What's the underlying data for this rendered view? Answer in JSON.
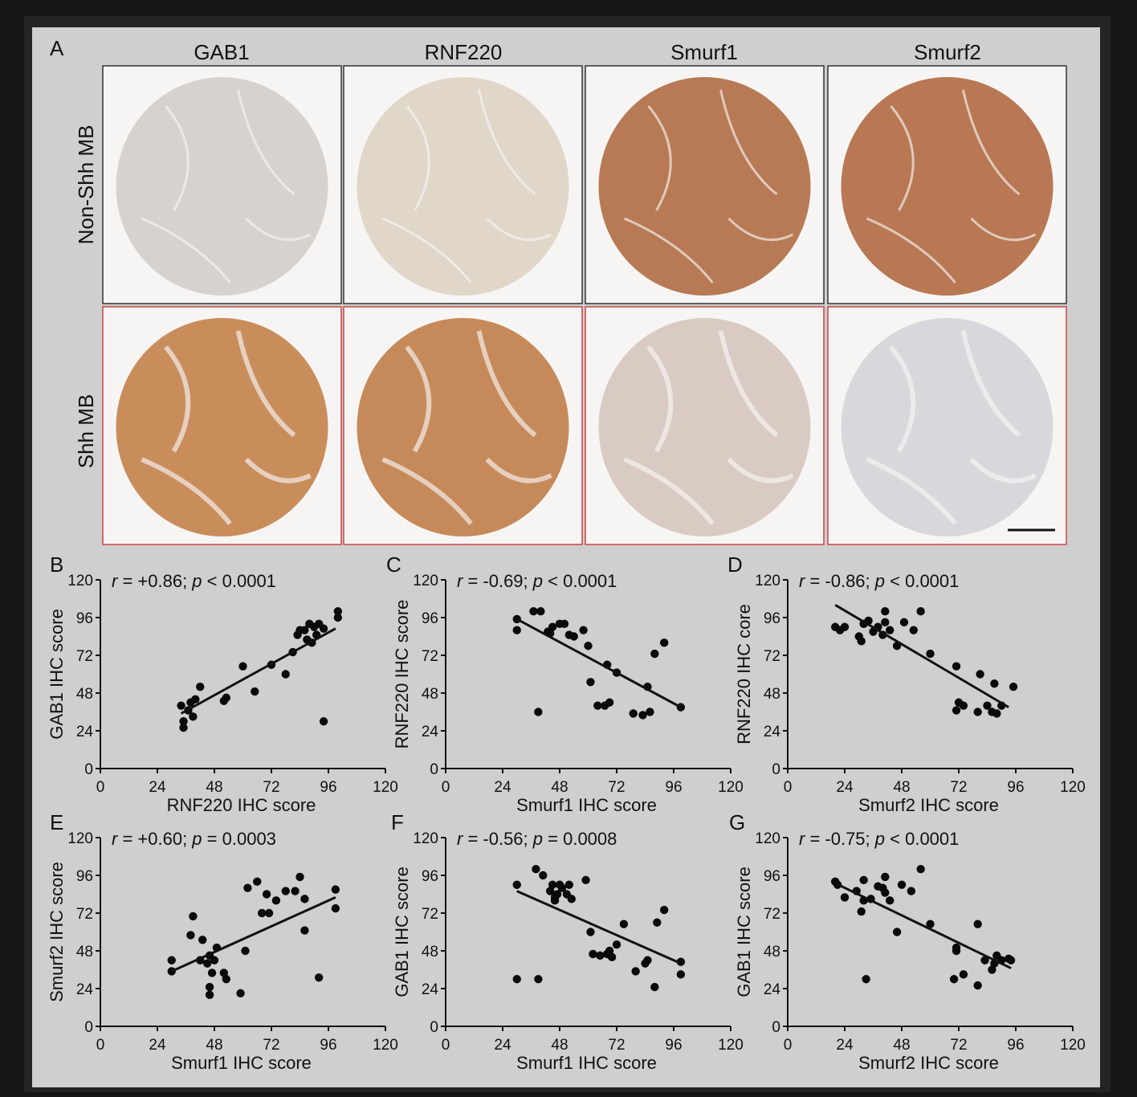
{
  "figure": {
    "panel_A_label": "A",
    "columns": [
      "GAB1",
      "RNF220",
      "Smurf1",
      "Smurf2"
    ],
    "rows": [
      "Non-Shh MB",
      "Shh MB"
    ],
    "tile_colors": {
      "non_shh": [
        "#d8d2cf",
        "#e0d7c8",
        "#b77a55",
        "#b87854"
      ],
      "shh": [
        "#c98d5c",
        "#c68a5a",
        "#d9cbc3",
        "#dad7dc"
      ]
    },
    "border_colors": {
      "non_shh": "#333333",
      "shh": "#cc4444"
    }
  },
  "chart_data": [
    {
      "panel": "B",
      "type": "scatter",
      "annotation": {
        "r": "r",
        "r_val": " = +0.86; ",
        "p": "p",
        "p_val": " < 0.0001"
      },
      "xlabel": "RNF220 IHC score",
      "ylabel": "GAB1 IHC score",
      "xlim": [
        0,
        120
      ],
      "ylim": [
        0,
        120
      ],
      "xticks": [
        0,
        24,
        48,
        72,
        96,
        120
      ],
      "yticks": [
        0,
        24,
        48,
        72,
        96,
        120
      ],
      "points": [
        [
          34,
          40
        ],
        [
          35,
          30
        ],
        [
          35,
          26
        ],
        [
          37,
          37
        ],
        [
          38,
          42
        ],
        [
          39,
          33
        ],
        [
          40,
          44
        ],
        [
          42,
          52
        ],
        [
          52,
          43
        ],
        [
          53,
          45
        ],
        [
          60,
          65
        ],
        [
          65,
          49
        ],
        [
          72,
          66
        ],
        [
          78,
          60
        ],
        [
          81,
          74
        ],
        [
          83,
          85
        ],
        [
          84,
          88
        ],
        [
          86,
          88
        ],
        [
          87,
          82
        ],
        [
          88,
          92
        ],
        [
          89,
          80
        ],
        [
          90,
          90
        ],
        [
          91,
          85
        ],
        [
          92,
          92
        ],
        [
          94,
          89
        ],
        [
          94,
          30
        ],
        [
          100,
          96
        ],
        [
          100,
          100
        ]
      ],
      "fit": [
        [
          34,
          35
        ],
        [
          99,
          89
        ]
      ]
    },
    {
      "panel": "C",
      "type": "scatter",
      "annotation": {
        "r": "r",
        "r_val": " = -0.69; ",
        "p": "p",
        "p_val": " < 0.0001"
      },
      "xlabel": "Smurf1 IHC score",
      "ylabel": "RNF220 IHC score",
      "xlim": [
        0,
        120
      ],
      "ylim": [
        0,
        120
      ],
      "xticks": [
        0,
        24,
        48,
        72,
        96,
        120
      ],
      "yticks": [
        0,
        24,
        48,
        72,
        96,
        120
      ],
      "points": [
        [
          30,
          95
        ],
        [
          30,
          88
        ],
        [
          37,
          100
        ],
        [
          39,
          36
        ],
        [
          40,
          100
        ],
        [
          43,
          87
        ],
        [
          44,
          86
        ],
        [
          45,
          90
        ],
        [
          48,
          92
        ],
        [
          50,
          92
        ],
        [
          52,
          85
        ],
        [
          54,
          84
        ],
        [
          58,
          88
        ],
        [
          60,
          78
        ],
        [
          61,
          55
        ],
        [
          64,
          40
        ],
        [
          67,
          40
        ],
        [
          68,
          66
        ],
        [
          69,
          42
        ],
        [
          72,
          61
        ],
        [
          79,
          35
        ],
        [
          83,
          34
        ],
        [
          85,
          52
        ],
        [
          86,
          36
        ],
        [
          88,
          73
        ],
        [
          92,
          80
        ],
        [
          99,
          39
        ]
      ],
      "fit": [
        [
          30,
          95
        ],
        [
          99,
          39
        ]
      ]
    },
    {
      "panel": "D",
      "type": "scatter",
      "annotation": {
        "r": "r",
        "r_val": " = -0.86; ",
        "p": "p",
        "p_val": " < 0.0001"
      },
      "xlabel": "Smurf2 IHC score",
      "ylabel": "RNF220 IHC core",
      "xlim": [
        0,
        120
      ],
      "ylim": [
        0,
        120
      ],
      "xticks": [
        0,
        24,
        48,
        72,
        96,
        120
      ],
      "yticks": [
        0,
        24,
        48,
        72,
        96,
        120
      ],
      "points": [
        [
          20,
          90
        ],
        [
          22,
          88
        ],
        [
          24,
          90
        ],
        [
          30,
          84
        ],
        [
          31,
          81
        ],
        [
          32,
          92
        ],
        [
          34,
          94
        ],
        [
          36,
          87
        ],
        [
          38,
          90
        ],
        [
          40,
          85
        ],
        [
          41,
          100
        ],
        [
          41,
          93
        ],
        [
          43,
          88
        ],
        [
          46,
          78
        ],
        [
          49,
          93
        ],
        [
          53,
          88
        ],
        [
          56,
          100
        ],
        [
          60,
          73
        ],
        [
          71,
          37
        ],
        [
          71,
          65
        ],
        [
          72,
          42
        ],
        [
          74,
          40
        ],
        [
          80,
          36
        ],
        [
          81,
          60
        ],
        [
          84,
          40
        ],
        [
          86,
          36
        ],
        [
          87,
          54
        ],
        [
          88,
          35
        ],
        [
          90,
          40
        ],
        [
          95,
          52
        ]
      ],
      "fit": [
        [
          20,
          104
        ],
        [
          93,
          39
        ]
      ]
    },
    {
      "panel": "E",
      "type": "scatter",
      "annotation": {
        "r": "r",
        "r_val": " = +0.60; ",
        "p": "p",
        "p_val": " = 0.0003"
      },
      "xlabel": "Smurf1 IHC score",
      "ylabel": "Smurf2 IHC score",
      "xlim": [
        0,
        120
      ],
      "ylim": [
        0,
        120
      ],
      "xticks": [
        0,
        24,
        48,
        72,
        96,
        120
      ],
      "yticks": [
        0,
        24,
        48,
        72,
        96,
        120
      ],
      "points": [
        [
          30,
          42
        ],
        [
          30,
          35
        ],
        [
          38,
          58
        ],
        [
          39,
          70
        ],
        [
          42,
          42
        ],
        [
          43,
          55
        ],
        [
          45,
          40
        ],
        [
          46,
          45
        ],
        [
          46,
          25
        ],
        [
          46,
          20
        ],
        [
          47,
          34
        ],
        [
          48,
          42
        ],
        [
          49,
          50
        ],
        [
          52,
          34
        ],
        [
          53,
          30
        ],
        [
          59,
          21
        ],
        [
          61,
          48
        ],
        [
          62,
          88
        ],
        [
          66,
          92
        ],
        [
          68,
          72
        ],
        [
          70,
          84
        ],
        [
          71,
          72
        ],
        [
          74,
          80
        ],
        [
          78,
          86
        ],
        [
          82,
          86
        ],
        [
          84,
          95
        ],
        [
          86,
          81
        ],
        [
          86,
          61
        ],
        [
          92,
          31
        ],
        [
          99,
          87
        ],
        [
          99,
          75
        ]
      ],
      "fit": [
        [
          30,
          35
        ],
        [
          99,
          82
        ]
      ]
    },
    {
      "panel": "F",
      "type": "scatter",
      "annotation": {
        "r": "r",
        "r_val": " = -0.56; ",
        "p": "p",
        "p_val": " = 0.0008"
      },
      "xlabel": "Smurf1 IHC score",
      "ylabel": "GAB1 IHC score",
      "xlim": [
        0,
        120
      ],
      "ylim": [
        0,
        120
      ],
      "xticks": [
        0,
        24,
        48,
        72,
        96,
        120
      ],
      "yticks": [
        0,
        24,
        48,
        72,
        96,
        120
      ],
      "points": [
        [
          30,
          90
        ],
        [
          30,
          30
        ],
        [
          38,
          100
        ],
        [
          39,
          30
        ],
        [
          41,
          96
        ],
        [
          44,
          86
        ],
        [
          45,
          90
        ],
        [
          46,
          82
        ],
        [
          46,
          80
        ],
        [
          47,
          84
        ],
        [
          48,
          90
        ],
        [
          49,
          88
        ],
        [
          51,
          84
        ],
        [
          52,
          90
        ],
        [
          53,
          81
        ],
        [
          59,
          93
        ],
        [
          61,
          60
        ],
        [
          62,
          46
        ],
        [
          65,
          45
        ],
        [
          68,
          46
        ],
        [
          69,
          48
        ],
        [
          70,
          44
        ],
        [
          72,
          52
        ],
        [
          75,
          65
        ],
        [
          80,
          35
        ],
        [
          84,
          40
        ],
        [
          85,
          42
        ],
        [
          88,
          25
        ],
        [
          89,
          66
        ],
        [
          92,
          74
        ],
        [
          99,
          41
        ],
        [
          99,
          33
        ]
      ],
      "fit": [
        [
          30,
          86
        ],
        [
          99,
          40
        ]
      ]
    },
    {
      "panel": "G",
      "type": "scatter",
      "annotation": {
        "r": "r",
        "r_val": " = -0.75; ",
        "p": "p",
        "p_val": " < 0.0001"
      },
      "xlabel": "Smurf2 IHC score",
      "ylabel": "GAB1 IHC score",
      "xlim": [
        0,
        120
      ],
      "ylim": [
        0,
        120
      ],
      "xticks": [
        0,
        24,
        48,
        72,
        96,
        120
      ],
      "yticks": [
        0,
        24,
        48,
        72,
        96,
        120
      ],
      "points": [
        [
          20,
          92
        ],
        [
          21,
          90
        ],
        [
          24,
          82
        ],
        [
          29,
          86
        ],
        [
          31,
          73
        ],
        [
          32,
          80
        ],
        [
          32,
          93
        ],
        [
          33,
          30
        ],
        [
          35,
          81
        ],
        [
          38,
          89
        ],
        [
          40,
          88
        ],
        [
          41,
          95
        ],
        [
          41,
          85
        ],
        [
          43,
          80
        ],
        [
          46,
          60
        ],
        [
          48,
          90
        ],
        [
          52,
          86
        ],
        [
          56,
          100
        ],
        [
          60,
          65
        ],
        [
          70,
          30
        ],
        [
          71,
          50
        ],
        [
          71,
          48
        ],
        [
          74,
          33
        ],
        [
          80,
          26
        ],
        [
          80,
          65
        ],
        [
          83,
          42
        ],
        [
          86,
          36
        ],
        [
          87,
          40
        ],
        [
          88,
          45
        ],
        [
          90,
          42
        ],
        [
          93,
          43
        ],
        [
          94,
          42
        ]
      ],
      "fit": [
        [
          20,
          91
        ],
        [
          94,
          37
        ]
      ]
    }
  ]
}
